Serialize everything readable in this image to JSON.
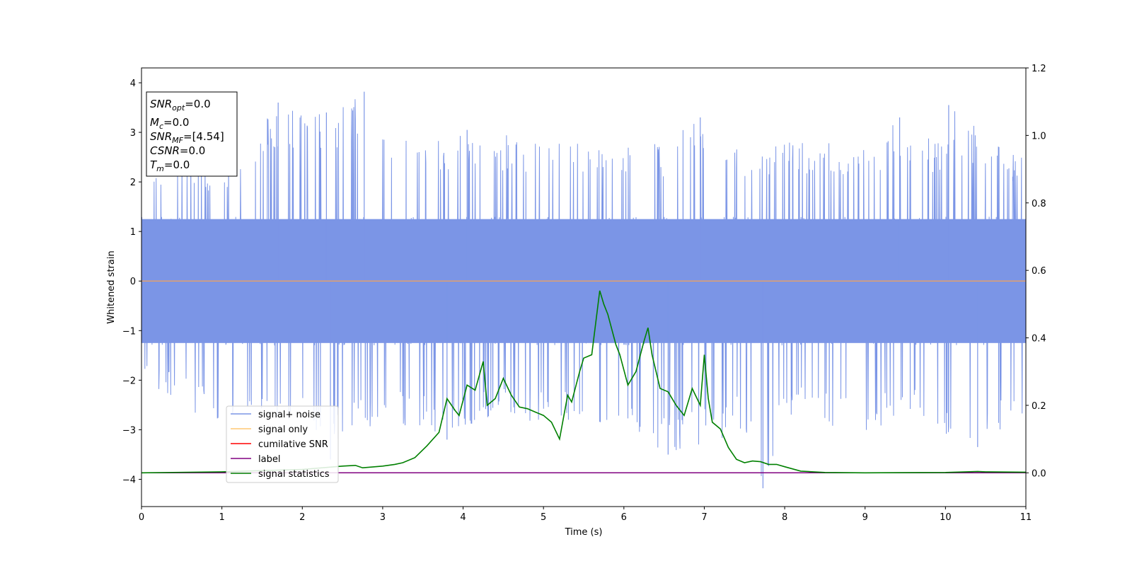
{
  "chart_data": {
    "type": "line",
    "xlabel": "Time (s)",
    "ylabel": "Whitened strain",
    "xlim": [
      0,
      11
    ],
    "ylim": [
      -4.55,
      4.3
    ],
    "y2lim": [
      -0.1,
      1.2
    ],
    "xticks": [
      "0",
      "1",
      "2",
      "3",
      "4",
      "5",
      "6",
      "7",
      "8",
      "9",
      "10",
      "11"
    ],
    "yticks": [
      "4",
      "3",
      "2",
      "1",
      "0",
      "−1",
      "−2",
      "−3",
      "−4"
    ],
    "y2ticks": [
      "1.2",
      "1.0",
      "0.8",
      "0.6",
      "0.4",
      "0.2",
      "0.0"
    ],
    "grid": false,
    "legend_position": "lower-left",
    "colors": {
      "noise": "#7b95e6",
      "signal_only": "#ffc773",
      "cumulative_snr": "#ff0000",
      "label": "#800080",
      "statistics": "#008000",
      "zero_line": "#e0a070"
    },
    "annotation": {
      "snr_opt": {
        "name": "SNR",
        "sub": "opt",
        "value": "=0.0"
      },
      "mc": {
        "name": "M",
        "sub": "c",
        "value": "=0.0"
      },
      "snr_mf": {
        "name": "SNR",
        "sub": "MF",
        "value": "=[4.54]"
      },
      "csnr": {
        "name": "CSNR",
        "value": "=0.0"
      },
      "tm": {
        "name": "T",
        "sub": "m",
        "value": "=0.0"
      }
    },
    "series": [
      {
        "name": "signal+ noise",
        "axis": "left",
        "style": "dense-noise",
        "envelope_upper": [
          [
            0,
            2.1
          ],
          [
            0.5,
            2.6
          ],
          [
            1.0,
            2.3
          ],
          [
            1.7,
            3.6
          ],
          [
            2.3,
            3.4
          ],
          [
            2.77,
            3.82
          ],
          [
            3.5,
            2.7
          ],
          [
            4.0,
            3.05
          ],
          [
            5.0,
            2.9
          ],
          [
            5.65,
            2.8
          ],
          [
            6.0,
            2.9
          ],
          [
            6.5,
            2.8
          ],
          [
            6.9,
            3.3
          ],
          [
            7.6,
            2.7
          ],
          [
            8.1,
            2.9
          ],
          [
            9.0,
            2.7
          ],
          [
            9.4,
            3.3
          ],
          [
            10.0,
            2.8
          ],
          [
            10.04,
            3.55
          ],
          [
            10.75,
            2.6
          ],
          [
            11,
            2.5
          ]
        ],
        "envelope_lower": [
          [
            0,
            -2.0
          ],
          [
            0.5,
            -2.5
          ],
          [
            0.9,
            -2.9
          ],
          [
            1.5,
            -2.7
          ],
          [
            2.0,
            -3.1
          ],
          [
            2.3,
            -3.6
          ],
          [
            3.0,
            -2.9
          ],
          [
            3.8,
            -3.2
          ],
          [
            4.5,
            -2.7
          ],
          [
            5.0,
            -2.9
          ],
          [
            5.4,
            -2.9
          ],
          [
            6.0,
            -2.9
          ],
          [
            6.5,
            -3.5
          ],
          [
            7.05,
            -3.3
          ],
          [
            7.5,
            -3.0
          ],
          [
            7.73,
            -4.18
          ],
          [
            8.0,
            -2.8
          ],
          [
            9.0,
            -3.1
          ],
          [
            9.5,
            -2.8
          ],
          [
            10.4,
            -3.3
          ],
          [
            11,
            -2.9
          ]
        ],
        "spikes": [
          [
            1.7,
            3.6
          ],
          [
            2.77,
            3.82
          ],
          [
            2.3,
            3.4
          ],
          [
            6.95,
            3.3
          ],
          [
            10.04,
            3.55
          ],
          [
            9.43,
            3.3
          ],
          [
            7.73,
            -4.18
          ],
          [
            2.35,
            -3.6
          ],
          [
            6.55,
            -3.5
          ],
          [
            10.4,
            -3.35
          ],
          [
            3.8,
            -3.2
          ],
          [
            4.05,
            3.05
          ]
        ]
      },
      {
        "name": "signal only",
        "axis": "left",
        "x": [
          0,
          11
        ],
        "y": [
          0,
          0
        ]
      },
      {
        "name": "cumilative SNR",
        "axis": "right",
        "x": [
          0,
          11
        ],
        "y": [
          0.0,
          0.0
        ]
      },
      {
        "name": "label",
        "axis": "right",
        "x": [
          0,
          11
        ],
        "y": [
          0.0,
          0.0
        ]
      },
      {
        "name": "signal statistics",
        "axis": "right",
        "x": [
          0,
          1.0,
          2.0,
          2.5,
          2.66,
          2.75,
          3.0,
          3.15,
          3.25,
          3.4,
          3.55,
          3.7,
          3.8,
          3.9,
          3.95,
          4.05,
          4.15,
          4.25,
          4.3,
          4.4,
          4.5,
          4.6,
          4.7,
          4.8,
          4.9,
          5.0,
          5.1,
          5.2,
          5.3,
          5.35,
          5.45,
          5.5,
          5.6,
          5.7,
          5.75,
          5.8,
          5.9,
          5.95,
          6.05,
          6.15,
          6.25,
          6.3,
          6.35,
          6.45,
          6.55,
          6.65,
          6.75,
          6.85,
          6.95,
          7.0,
          7.05,
          7.1,
          7.2,
          7.3,
          7.4,
          7.5,
          7.6,
          7.7,
          7.8,
          7.9,
          8.0,
          8.2,
          8.5,
          9.0,
          10.0,
          10.4,
          10.5,
          11.0
        ],
        "y": [
          0.0,
          0.003,
          0.01,
          0.02,
          0.022,
          0.015,
          0.02,
          0.025,
          0.03,
          0.045,
          0.08,
          0.12,
          0.22,
          0.185,
          0.17,
          0.26,
          0.245,
          0.33,
          0.2,
          0.22,
          0.28,
          0.23,
          0.195,
          0.19,
          0.18,
          0.17,
          0.15,
          0.1,
          0.23,
          0.21,
          0.3,
          0.34,
          0.35,
          0.54,
          0.5,
          0.47,
          0.38,
          0.35,
          0.26,
          0.3,
          0.39,
          0.43,
          0.35,
          0.25,
          0.24,
          0.2,
          0.17,
          0.25,
          0.2,
          0.35,
          0.22,
          0.15,
          0.13,
          0.075,
          0.04,
          0.03,
          0.035,
          0.033,
          0.025,
          0.025,
          0.018,
          0.005,
          0.001,
          0.0,
          0.001,
          0.004,
          0.003,
          0.002
        ]
      }
    ]
  }
}
